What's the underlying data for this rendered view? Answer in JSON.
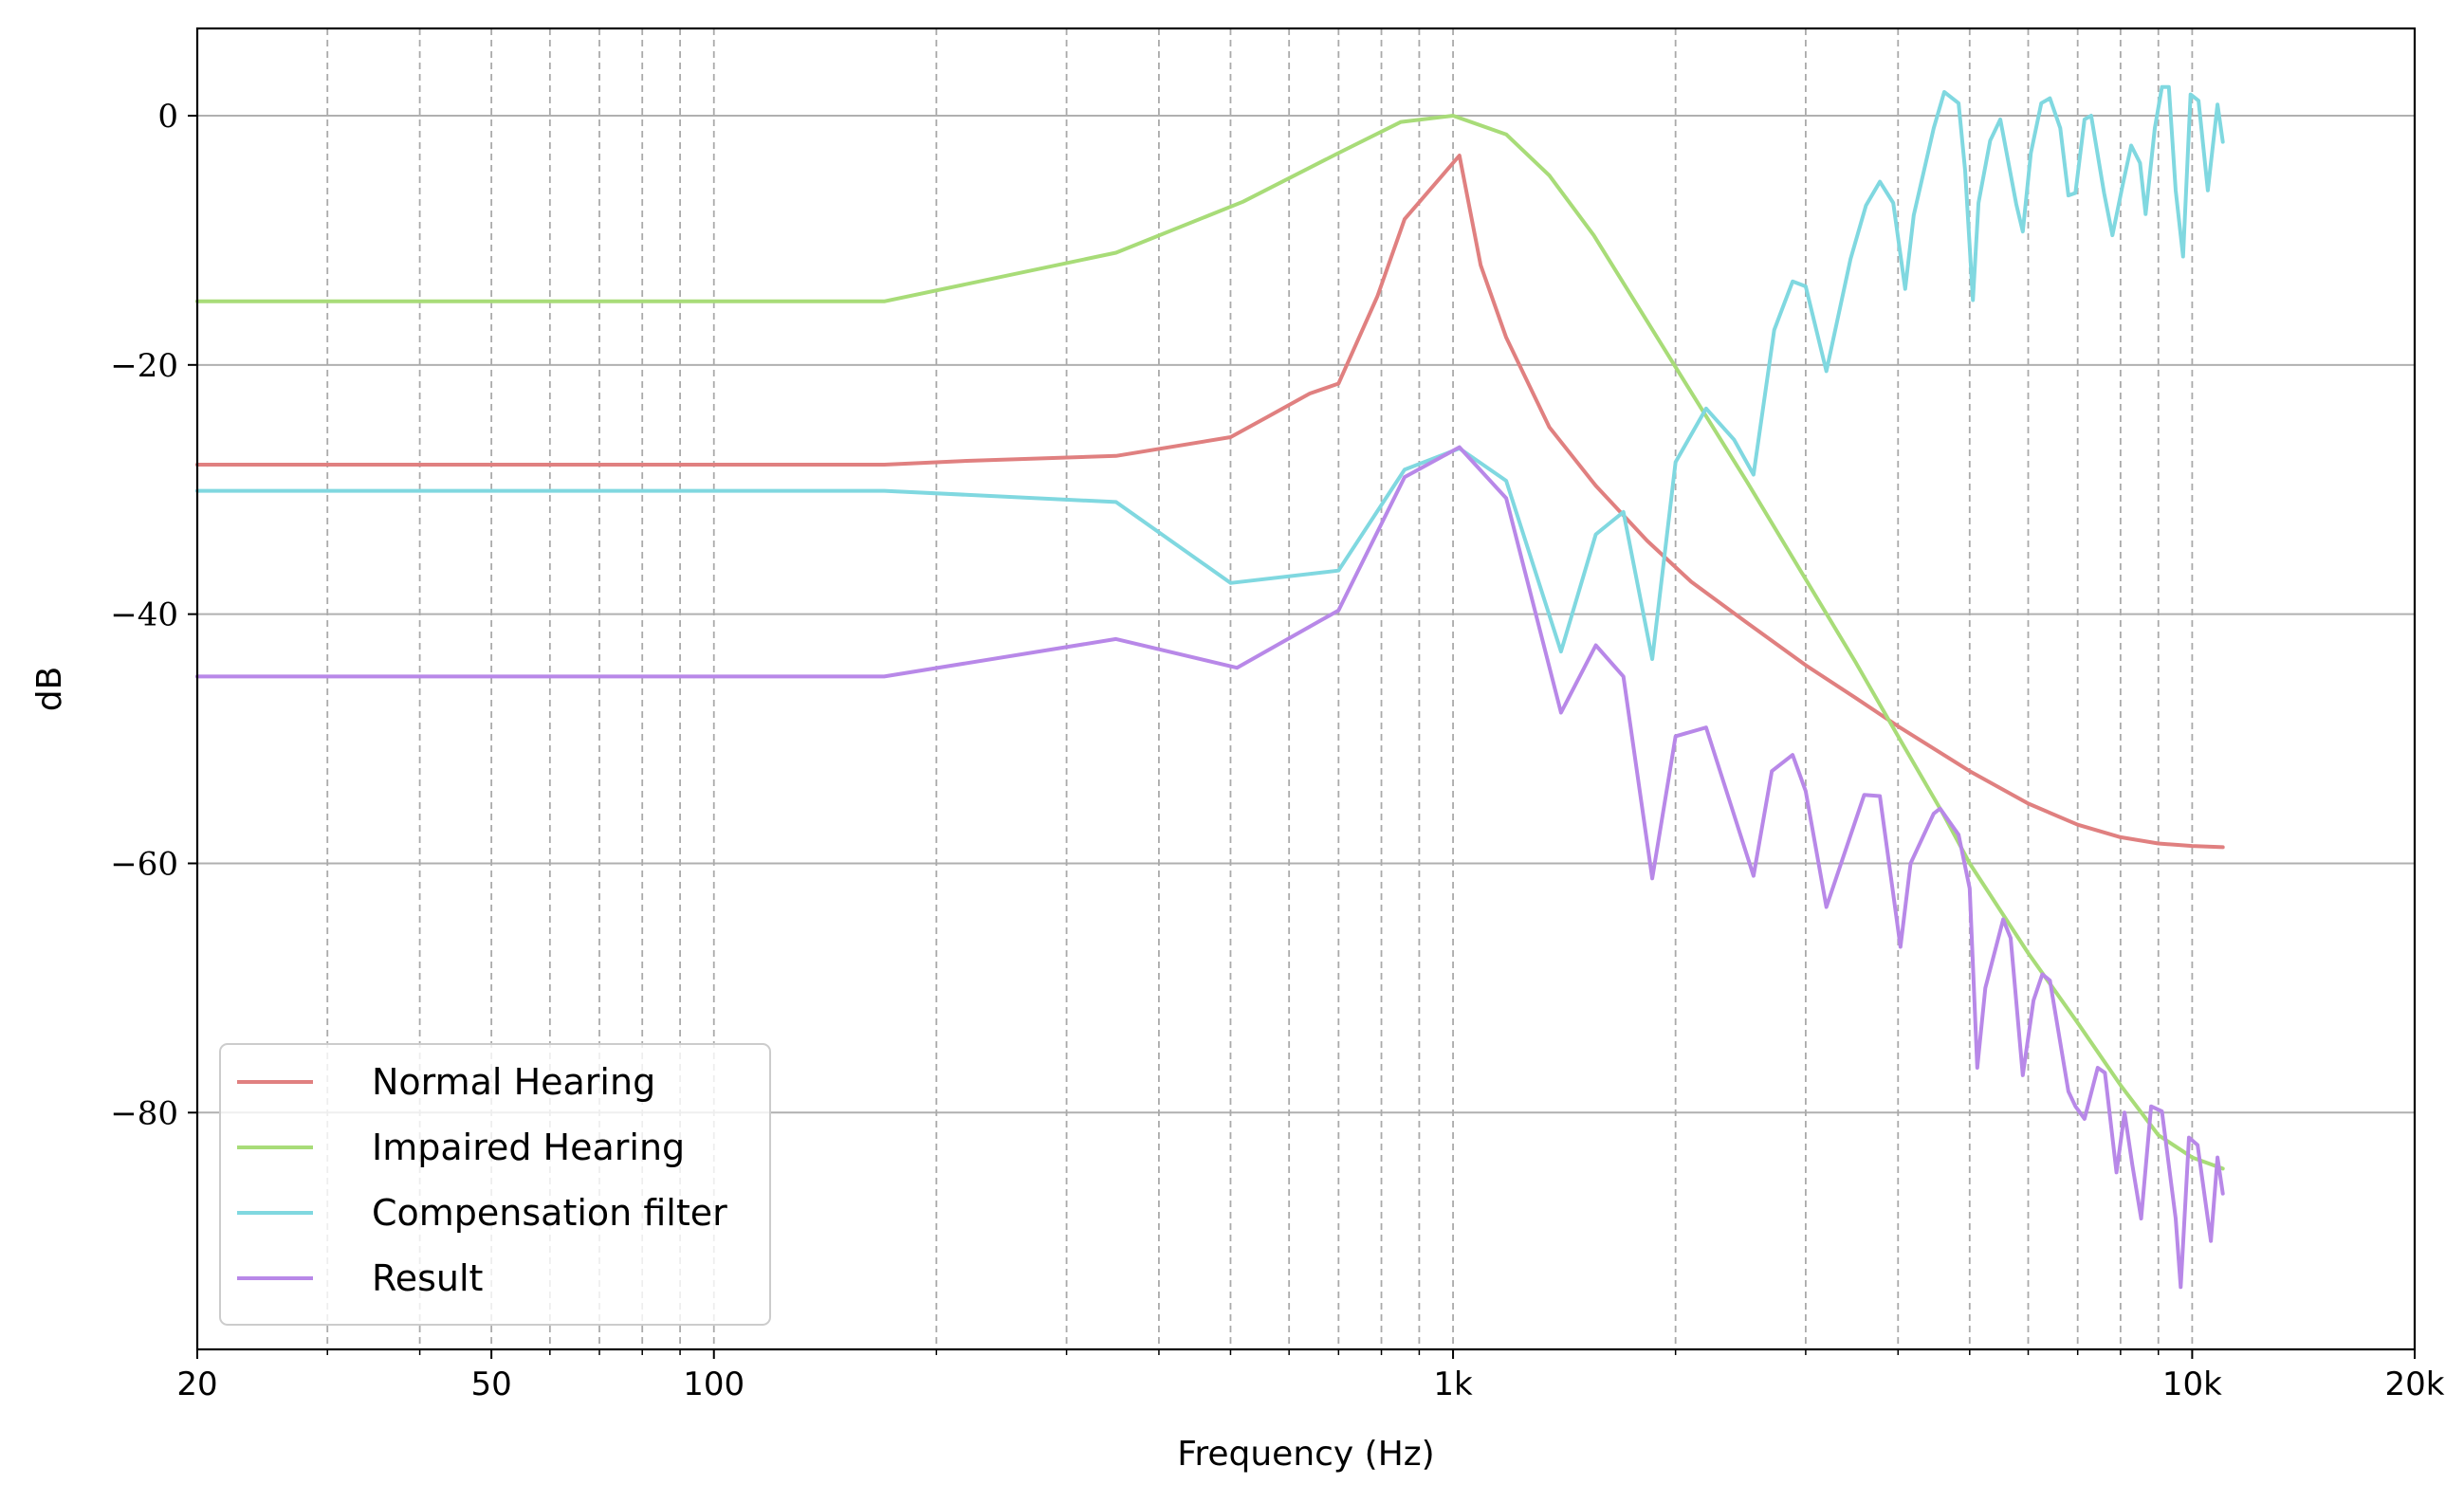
{
  "chart_data": {
    "type": "line",
    "title": "",
    "xlabel": "Frequency (Hz)",
    "ylabel": "dB",
    "xscale": "log",
    "xlim": [
      20,
      20000
    ],
    "ylim": [
      -99,
      7
    ],
    "x_ticks": [
      {
        "value": 20,
        "label": "20"
      },
      {
        "value": 50,
        "label": "50"
      },
      {
        "value": 100,
        "label": "100"
      },
      {
        "value": 1000,
        "label": "1k"
      },
      {
        "value": 10000,
        "label": "10k"
      },
      {
        "value": 20000,
        "label": "20k"
      }
    ],
    "y_ticks": [
      {
        "value": 0,
        "label": "0"
      },
      {
        "value": -20,
        "label": "−20"
      },
      {
        "value": -40,
        "label": "−40"
      },
      {
        "value": -60,
        "label": "−60"
      },
      {
        "value": -80,
        "label": "−80"
      }
    ],
    "grid": {
      "y_major": "solid",
      "x_lines": "dashed",
      "x_values": [
        30,
        40,
        50,
        60,
        70,
        80,
        90,
        100,
        200,
        300,
        400,
        500,
        600,
        700,
        800,
        900,
        1000,
        2000,
        3000,
        4000,
        5000,
        6000,
        7000,
        8000,
        9000,
        10000
      ]
    },
    "legend_position": "bottom-left",
    "series": [
      {
        "name": "Normal Hearing",
        "color": "#e08080",
        "points": [
          [
            20,
            -28
          ],
          [
            170,
            -28
          ],
          [
            220,
            -27.7
          ],
          [
            350,
            -27.3
          ],
          [
            500,
            -25.8
          ],
          [
            560,
            -24.2
          ],
          [
            640,
            -22.3
          ],
          [
            700,
            -21.5
          ],
          [
            790,
            -14.5
          ],
          [
            860,
            -8.3
          ],
          [
            1020,
            -3.2
          ],
          [
            1090,
            -12
          ],
          [
            1180,
            -17.8
          ],
          [
            1350,
            -25
          ],
          [
            1560,
            -29.7
          ],
          [
            1830,
            -34.1
          ],
          [
            2100,
            -37.4
          ],
          [
            2500,
            -40.7
          ],
          [
            3000,
            -44.1
          ],
          [
            3500,
            -46.7
          ],
          [
            4000,
            -49
          ],
          [
            5000,
            -52.6
          ],
          [
            6000,
            -55.2
          ],
          [
            7000,
            -56.9
          ],
          [
            8000,
            -57.9
          ],
          [
            9000,
            -58.4
          ],
          [
            10000,
            -58.6
          ],
          [
            11000,
            -58.7
          ]
        ]
      },
      {
        "name": "Impaired Hearing",
        "color": "#a8dc78",
        "points": [
          [
            20,
            -14.9
          ],
          [
            170,
            -14.9
          ],
          [
            350,
            -11
          ],
          [
            520,
            -6.9
          ],
          [
            700,
            -3
          ],
          [
            850,
            -0.5
          ],
          [
            1000,
            0
          ],
          [
            1180,
            -1.5
          ],
          [
            1350,
            -4.8
          ],
          [
            1550,
            -9.6
          ],
          [
            1800,
            -15.8
          ],
          [
            2100,
            -22.2
          ],
          [
            2500,
            -29.4
          ],
          [
            3000,
            -37.2
          ],
          [
            3500,
            -43.8
          ],
          [
            4000,
            -49.8
          ],
          [
            4600,
            -56
          ],
          [
            5000,
            -60
          ],
          [
            6000,
            -67.2
          ],
          [
            7000,
            -72.8
          ],
          [
            8000,
            -77.8
          ],
          [
            9000,
            -81.8
          ],
          [
            10000,
            -83.6
          ],
          [
            11000,
            -84.5
          ]
        ]
      },
      {
        "name": "Compensation filter",
        "color": "#80d8e0",
        "points": [
          [
            20,
            -30.1
          ],
          [
            170,
            -30.1
          ],
          [
            350,
            -31
          ],
          [
            500,
            -37.5
          ],
          [
            700,
            -36.5
          ],
          [
            860,
            -28.4
          ],
          [
            1020,
            -26.7
          ],
          [
            1180,
            -29.3
          ],
          [
            1400,
            -43
          ],
          [
            1560,
            -33.6
          ],
          [
            1700,
            -31.8
          ],
          [
            1860,
            -43.6
          ],
          [
            2000,
            -27.8
          ],
          [
            2200,
            -23.5
          ],
          [
            2400,
            -26
          ],
          [
            2550,
            -28.8
          ],
          [
            2720,
            -17.2
          ],
          [
            2880,
            -13.3
          ],
          [
            3000,
            -13.7
          ],
          [
            3200,
            -20.5
          ],
          [
            3450,
            -11.5
          ],
          [
            3620,
            -7.2
          ],
          [
            3780,
            -5.3
          ],
          [
            3940,
            -7
          ],
          [
            4090,
            -13.9
          ],
          [
            4200,
            -8
          ],
          [
            4470,
            -1
          ],
          [
            4620,
            1.9
          ],
          [
            4830,
            1
          ],
          [
            4930,
            -4.4
          ],
          [
            5050,
            -14.8
          ],
          [
            5140,
            -7
          ],
          [
            5330,
            -2
          ],
          [
            5500,
            -0.3
          ],
          [
            5780,
            -7.1
          ],
          [
            5900,
            -9.3
          ],
          [
            6050,
            -3
          ],
          [
            6250,
            1
          ],
          [
            6420,
            1.4
          ],
          [
            6630,
            -1
          ],
          [
            6800,
            -6.4
          ],
          [
            6950,
            -6.2
          ],
          [
            7150,
            -0.3
          ],
          [
            7300,
            0
          ],
          [
            7600,
            -6.2
          ],
          [
            7800,
            -9.6
          ],
          [
            8050,
            -5.6
          ],
          [
            8270,
            -2.4
          ],
          [
            8500,
            -3.8
          ],
          [
            8650,
            -7.9
          ],
          [
            8900,
            -1
          ],
          [
            9100,
            2.3
          ],
          [
            9300,
            2.3
          ],
          [
            9500,
            -6
          ],
          [
            9720,
            -11.3
          ],
          [
            9950,
            1.7
          ],
          [
            10200,
            1.2
          ],
          [
            10500,
            -6
          ],
          [
            10820,
            0.9
          ],
          [
            11000,
            -2.1
          ]
        ]
      },
      {
        "name": "Result",
        "color": "#b888e8",
        "points": [
          [
            20,
            -45
          ],
          [
            170,
            -45
          ],
          [
            350,
            -42
          ],
          [
            510,
            -44.3
          ],
          [
            700,
            -39.7
          ],
          [
            860,
            -29
          ],
          [
            1020,
            -26.6
          ],
          [
            1180,
            -30.7
          ],
          [
            1400,
            -47.9
          ],
          [
            1560,
            -42.5
          ],
          [
            1700,
            -45
          ],
          [
            1860,
            -61.2
          ],
          [
            2000,
            -49.8
          ],
          [
            2200,
            -49.1
          ],
          [
            2550,
            -61
          ],
          [
            2700,
            -52.6
          ],
          [
            2880,
            -51.3
          ],
          [
            3000,
            -54.2
          ],
          [
            3200,
            -63.5
          ],
          [
            3600,
            -54.5
          ],
          [
            3780,
            -54.6
          ],
          [
            4030,
            -66.7
          ],
          [
            4160,
            -60
          ],
          [
            4470,
            -56
          ],
          [
            4560,
            -55.6
          ],
          [
            4830,
            -57.7
          ],
          [
            5000,
            -62
          ],
          [
            5120,
            -76.4
          ],
          [
            5250,
            -70
          ],
          [
            5550,
            -64.5
          ],
          [
            5680,
            -66
          ],
          [
            5900,
            -77
          ],
          [
            6100,
            -71
          ],
          [
            6270,
            -68.9
          ],
          [
            6420,
            -69.4
          ],
          [
            6800,
            -78.3
          ],
          [
            6950,
            -79.5
          ],
          [
            7150,
            -80.5
          ],
          [
            7450,
            -76.4
          ],
          [
            7620,
            -76.8
          ],
          [
            7900,
            -84.8
          ],
          [
            8100,
            -80
          ],
          [
            8300,
            -84.2
          ],
          [
            8530,
            -88.5
          ],
          [
            8800,
            -79.5
          ],
          [
            9100,
            -79.9
          ],
          [
            9500,
            -88.5
          ],
          [
            9650,
            -94
          ],
          [
            9900,
            -82
          ],
          [
            10170,
            -82.6
          ],
          [
            10600,
            -90.3
          ],
          [
            10820,
            -83.6
          ],
          [
            11000,
            -86.5
          ]
        ]
      }
    ]
  }
}
